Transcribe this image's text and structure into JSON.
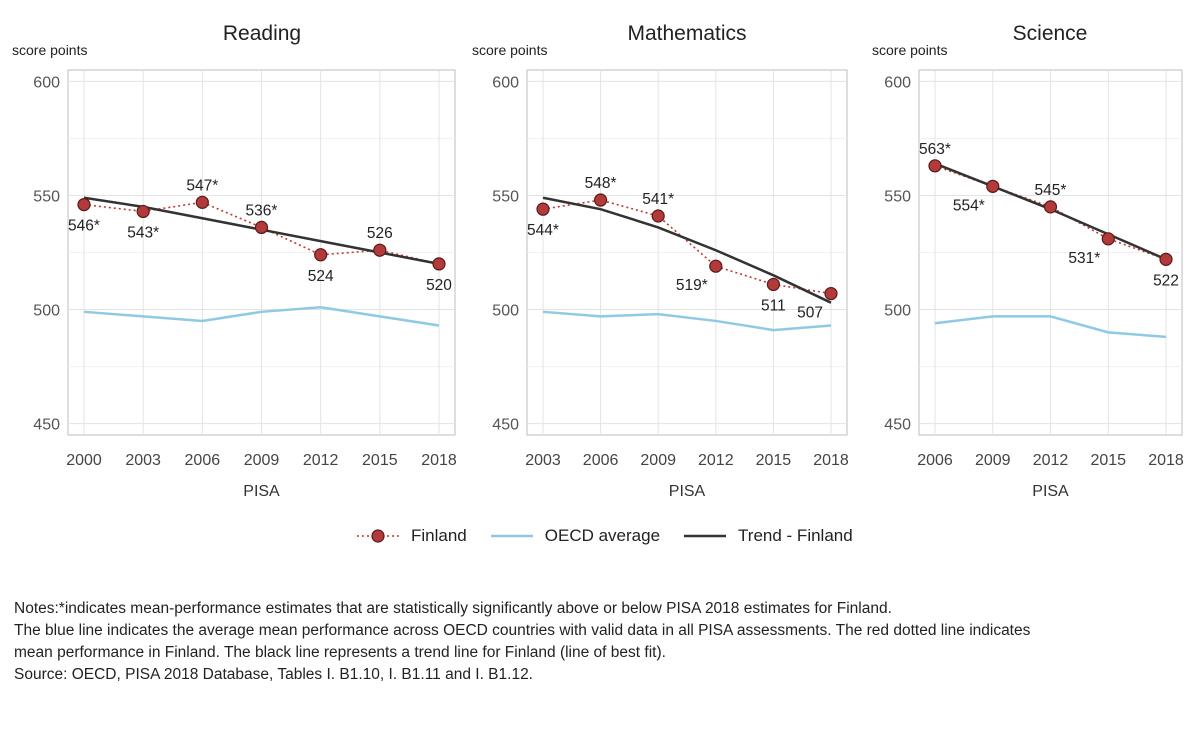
{
  "chart_data": [
    {
      "type": "line",
      "title": "Reading",
      "ylabel": "score points",
      "xlabel": "PISA",
      "ylim": [
        445,
        605
      ],
      "yticks": [
        450,
        500,
        550,
        600
      ],
      "x": [
        2000,
        2003,
        2006,
        2009,
        2012,
        2015,
        2018
      ],
      "grid": true,
      "series": [
        {
          "name": "Finland",
          "style": "points-dotted",
          "color": "#c0392b",
          "values": [
            546,
            543,
            547,
            536,
            524,
            526,
            520
          ],
          "labels": [
            "546*",
            "543*",
            "547*",
            "536*",
            "524",
            "526",
            "520"
          ],
          "label_pos": [
            "below",
            "below",
            "above",
            "above",
            "below",
            "above",
            "below"
          ]
        },
        {
          "name": "OECD average",
          "style": "line",
          "color": "#8ecae6",
          "values": [
            499,
            497,
            495,
            499,
            501,
            497,
            493
          ]
        },
        {
          "name": "Trend - Finland",
          "style": "line",
          "color": "#333333",
          "values": [
            549,
            545,
            540,
            535,
            530,
            525,
            520
          ]
        }
      ]
    },
    {
      "type": "line",
      "title": "Mathematics",
      "ylabel": "score points",
      "xlabel": "PISA",
      "ylim": [
        445,
        605
      ],
      "yticks": [
        450,
        500,
        550,
        600
      ],
      "x": [
        2003,
        2006,
        2009,
        2012,
        2015,
        2018
      ],
      "grid": true,
      "series": [
        {
          "name": "Finland",
          "style": "points-dotted",
          "color": "#c0392b",
          "values": [
            544,
            548,
            541,
            519,
            511,
            507
          ],
          "labels": [
            "544*",
            "548*",
            "541*",
            "519*",
            "511",
            "507"
          ],
          "label_pos": [
            "below",
            "above",
            "above",
            "below-left",
            "below",
            "below-left"
          ]
        },
        {
          "name": "OECD average",
          "style": "line",
          "color": "#8ecae6",
          "values": [
            499,
            497,
            498,
            495,
            491,
            493
          ]
        },
        {
          "name": "Trend - Finland",
          "style": "line",
          "color": "#333333",
          "values": [
            549,
            544,
            536,
            526,
            515,
            503
          ]
        }
      ]
    },
    {
      "type": "line",
      "title": "Science",
      "ylabel": "score points",
      "xlabel": "PISA",
      "ylim": [
        445,
        605
      ],
      "yticks": [
        450,
        500,
        550,
        600
      ],
      "x": [
        2006,
        2009,
        2012,
        2015,
        2018
      ],
      "grid": true,
      "series": [
        {
          "name": "Finland",
          "style": "points-dotted",
          "color": "#c0392b",
          "values": [
            563,
            554,
            545,
            531,
            522
          ],
          "labels": [
            "563*",
            "554*",
            "545*",
            "531*",
            "522"
          ],
          "label_pos": [
            "above",
            "below-left",
            "above",
            "below-left",
            "below"
          ]
        },
        {
          "name": "OECD average",
          "style": "line",
          "color": "#8ecae6",
          "values": [
            494,
            497,
            497,
            490,
            488
          ]
        },
        {
          "name": "Trend - Finland",
          "style": "line",
          "color": "#333333",
          "values": [
            564,
            554,
            544,
            533,
            522
          ]
        }
      ]
    }
  ],
  "legend": {
    "placement": "bottom-center",
    "items": [
      {
        "label": "Finland",
        "color": "#c0392b",
        "style": "point-dotted"
      },
      {
        "label": "OECD average",
        "color": "#8ecae6",
        "style": "line"
      },
      {
        "label": "Trend - Finland",
        "color": "#333333",
        "style": "line"
      }
    ]
  },
  "notes": {
    "line1": "Notes:*indicates mean-performance estimates that are statistically significantly above or below PISA 2018 estimates for Finland.",
    "line2": "The blue line indicates the average mean performance across OECD countries with valid data in all PISA assessments. The red dotted line indicates",
    "line3": "mean performance in Finland. The black line represents a trend line for Finland (line of best fit).",
    "line4": "Source: OECD, PISA 2018 Database, Tables I. B1.10, I. B1.11 and I. B1.12."
  }
}
